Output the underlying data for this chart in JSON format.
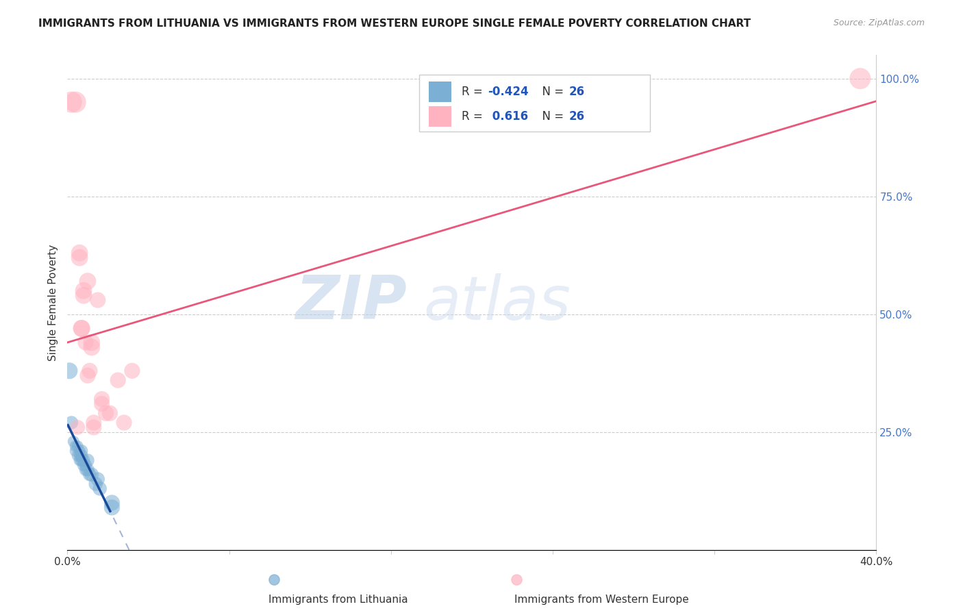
{
  "title": "IMMIGRANTS FROM LITHUANIA VS IMMIGRANTS FROM WESTERN EUROPE SINGLE FEMALE POVERTY CORRELATION CHART",
  "source": "Source: ZipAtlas.com",
  "ylabel": "Single Female Poverty",
  "legend_label1": "Immigrants from Lithuania",
  "legend_label2": "Immigrants from Western Europe",
  "r1": -0.424,
  "r2": 0.616,
  "n1": 26,
  "n2": 26,
  "xlim": [
    0.0,
    0.4
  ],
  "ylim": [
    0.0,
    1.05
  ],
  "xticks": [
    0.0,
    0.08,
    0.16,
    0.24,
    0.32,
    0.4
  ],
  "xtick_labels": [
    "0.0%",
    "",
    "",
    "",
    "",
    "40.0%"
  ],
  "yticks_right": [
    0.0,
    0.25,
    0.5,
    0.75,
    1.0
  ],
  "ytick_right_labels": [
    "",
    "25.0%",
    "50.0%",
    "75.0%",
    "100.0%"
  ],
  "color_blue": "#7BAFD4",
  "color_pink": "#FFB3C1",
  "color_blue_line": "#1A4A99",
  "color_pink_line": "#E8567A",
  "watermark_zip": "ZIP",
  "watermark_atlas": "atlas",
  "blue_dots": [
    [
      0.001,
      0.38
    ],
    [
      0.002,
      0.27
    ],
    [
      0.003,
      0.23
    ],
    [
      0.004,
      0.22
    ],
    [
      0.004,
      0.21
    ],
    [
      0.005,
      0.22
    ],
    [
      0.005,
      0.2
    ],
    [
      0.006,
      0.21
    ],
    [
      0.006,
      0.2
    ],
    [
      0.006,
      0.19
    ],
    [
      0.007,
      0.21
    ],
    [
      0.007,
      0.2
    ],
    [
      0.007,
      0.19
    ],
    [
      0.008,
      0.19
    ],
    [
      0.008,
      0.18
    ],
    [
      0.009,
      0.18
    ],
    [
      0.009,
      0.17
    ],
    [
      0.01,
      0.19
    ],
    [
      0.01,
      0.17
    ],
    [
      0.011,
      0.16
    ],
    [
      0.012,
      0.16
    ],
    [
      0.014,
      0.14
    ],
    [
      0.015,
      0.15
    ],
    [
      0.016,
      0.13
    ],
    [
      0.022,
      0.1
    ],
    [
      0.022,
      0.09
    ]
  ],
  "pink_dots": [
    [
      0.002,
      0.95
    ],
    [
      0.004,
      0.95
    ],
    [
      0.005,
      0.26
    ],
    [
      0.006,
      0.63
    ],
    [
      0.006,
      0.62
    ],
    [
      0.007,
      0.47
    ],
    [
      0.007,
      0.47
    ],
    [
      0.008,
      0.55
    ],
    [
      0.008,
      0.54
    ],
    [
      0.009,
      0.44
    ],
    [
      0.01,
      0.57
    ],
    [
      0.01,
      0.37
    ],
    [
      0.011,
      0.38
    ],
    [
      0.012,
      0.44
    ],
    [
      0.012,
      0.43
    ],
    [
      0.013,
      0.27
    ],
    [
      0.013,
      0.26
    ],
    [
      0.015,
      0.53
    ],
    [
      0.017,
      0.32
    ],
    [
      0.017,
      0.31
    ],
    [
      0.019,
      0.29
    ],
    [
      0.021,
      0.29
    ],
    [
      0.025,
      0.36
    ],
    [
      0.028,
      0.27
    ],
    [
      0.032,
      0.38
    ],
    [
      0.392,
      1.0
    ]
  ],
  "blue_dot_sizes": [
    300,
    200,
    150,
    150,
    150,
    150,
    150,
    150,
    150,
    150,
    180,
    180,
    180,
    180,
    180,
    180,
    180,
    200,
    200,
    200,
    220,
    220,
    220,
    220,
    280,
    280
  ],
  "pink_dot_sizes": [
    500,
    500,
    250,
    320,
    320,
    320,
    320,
    320,
    320,
    280,
    320,
    280,
    280,
    320,
    320,
    280,
    280,
    280,
    280,
    280,
    280,
    280,
    280,
    280,
    280,
    500
  ]
}
